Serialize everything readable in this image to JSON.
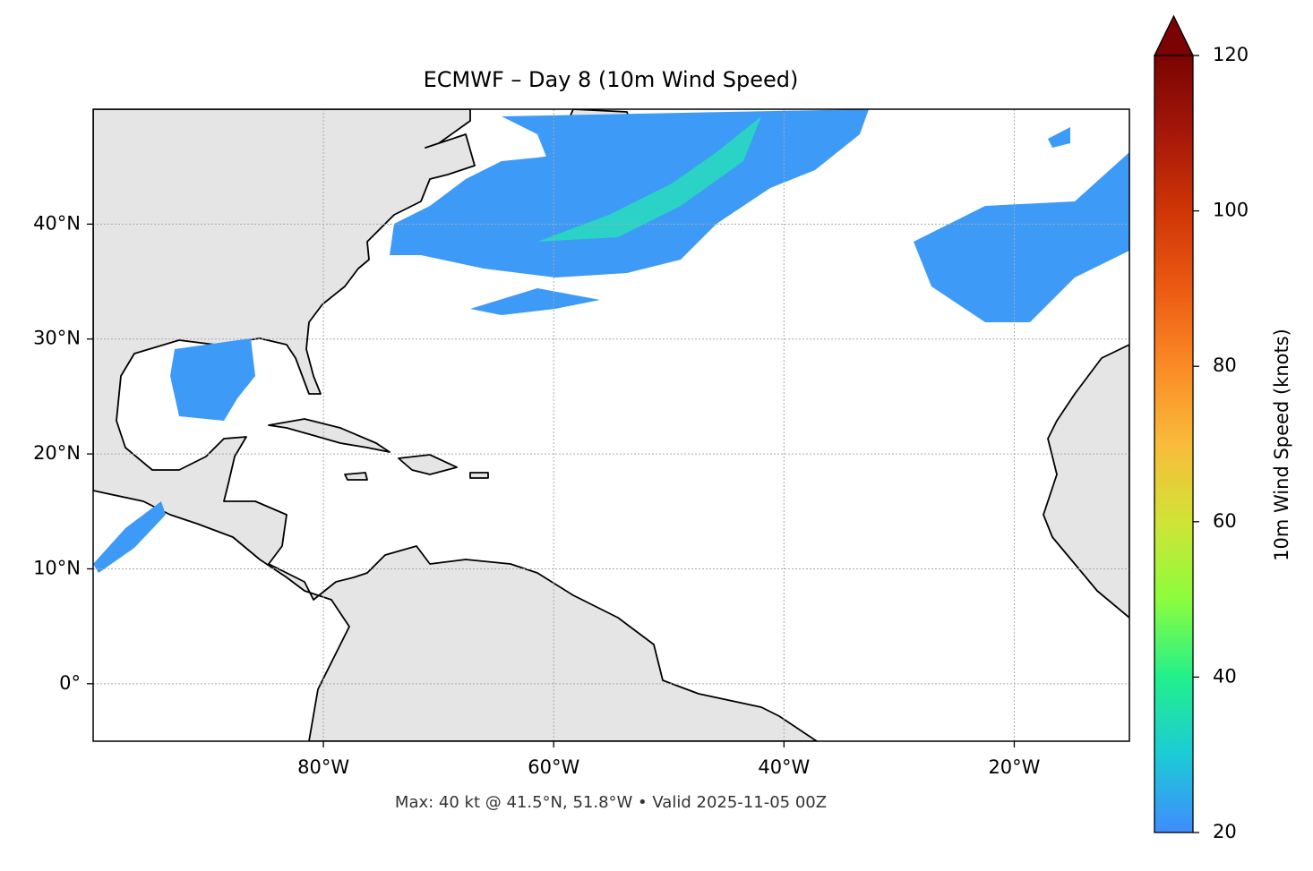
{
  "chart_data": {
    "type": "map",
    "title": "ECMWF – Day 8 (10m Wind Speed)",
    "xlim": [
      -100,
      -10
    ],
    "ylim": [
      -5,
      50
    ],
    "xticks": [
      {
        "value": -80,
        "label": "80°W"
      },
      {
        "value": -60,
        "label": "60°W"
      },
      {
        "value": -40,
        "label": "40°W"
      },
      {
        "value": -20,
        "label": "20°W"
      }
    ],
    "yticks": [
      {
        "value": 0,
        "label": "0°"
      },
      {
        "value": 10,
        "label": "10°N"
      },
      {
        "value": 20,
        "label": "20°N"
      },
      {
        "value": 30,
        "label": "30°N"
      },
      {
        "value": 40,
        "label": "40°N"
      }
    ],
    "grid": true,
    "annotation": "Max: 40 kt @ 41.5°N, 51.8°W • Valid 2025-11-05 00Z",
    "colorbar": {
      "label": "10m Wind Speed (knots)",
      "lim": [
        20,
        120
      ],
      "ticks": [
        20,
        40,
        60,
        80,
        100,
        120
      ],
      "extend": "max",
      "colors": [
        "#3f8cfd",
        "#1ccbd6",
        "#22f08b",
        "#8cfd3d",
        "#d0e336",
        "#f9bb3a",
        "#fb8a26",
        "#ec5a13",
        "#cf3506",
        "#a5170a",
        "#7a0403"
      ]
    }
  }
}
